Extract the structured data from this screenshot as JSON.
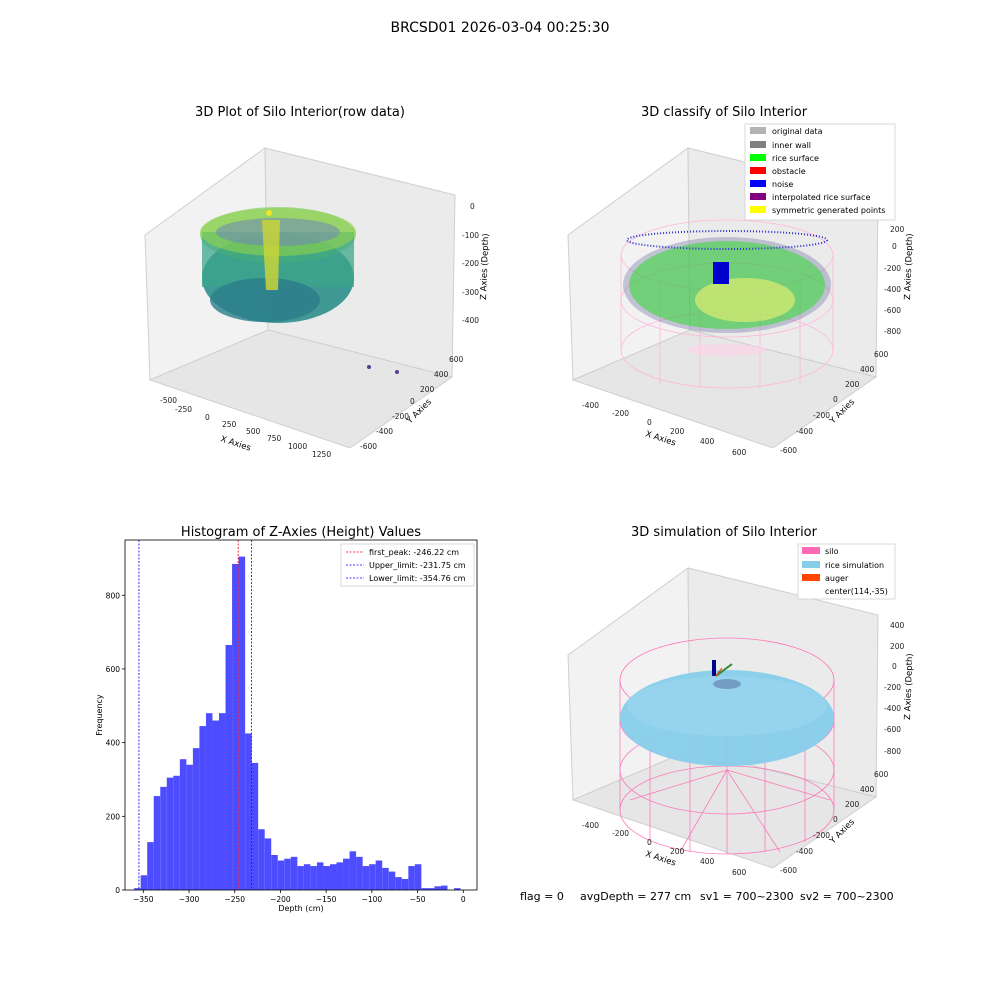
{
  "suptitle": "BRCSD01 2026-03-04 00:25:30",
  "footer": {
    "flag": "flag = 0",
    "avg": "avgDepth = 277 cm",
    "sv1": "sv1 = 700~2300",
    "sv2": "sv2 = 700~2300"
  },
  "panels": {
    "raw": {
      "title": "3D Plot of Silo Interior(row data)",
      "xlabel": "X Axies",
      "ylabel": "Y Axies",
      "zlabel": "Z Axies (Depth)",
      "xticks": [
        "-500",
        "-250",
        "0",
        "250",
        "500",
        "750",
        "1000",
        "1250"
      ],
      "yticks": [
        "600",
        "400",
        "200",
        "0",
        "-200",
        "-400",
        "-600"
      ],
      "zticks": [
        "0",
        "-100",
        "-200",
        "-300",
        "-400"
      ]
    },
    "classify": {
      "title": "3D classify of Silo Interior",
      "xlabel": "X Axies",
      "ylabel": "Y Axies",
      "zlabel": "Z Axies (Depth)",
      "xticks": [
        "-400",
        "-200",
        "0",
        "200",
        "400",
        "600"
      ],
      "yticks": [
        "600",
        "400",
        "200",
        "0",
        "-200",
        "-400",
        "-600"
      ],
      "zticks": [
        "200",
        "0",
        "-200",
        "-400",
        "-600",
        "-800"
      ],
      "legend": [
        {
          "label": "original data",
          "color": "#b3b3b3"
        },
        {
          "label": "inner wall",
          "color": "#808080"
        },
        {
          "label": "rice surface",
          "color": "#00ff00"
        },
        {
          "label": "obstacle",
          "color": "#ff0000"
        },
        {
          "label": "noise",
          "color": "#0000ff"
        },
        {
          "label": "interpolated rice surface",
          "color": "#800080"
        },
        {
          "label": "symmetric generated points",
          "color": "#ffff00"
        }
      ]
    },
    "simulation": {
      "title": "3D simulation of Silo Interior",
      "xlabel": "X Axies",
      "ylabel": "Y Axies",
      "zlabel": "Z Axies (Depth)",
      "xticks": [
        "-400",
        "-200",
        "0",
        "200",
        "400",
        "600"
      ],
      "yticks": [
        "600",
        "400",
        "200",
        "0",
        "-200",
        "-400",
        "-600"
      ],
      "zticks": [
        "400",
        "200",
        "0",
        "-200",
        "-400",
        "-600",
        "-800"
      ],
      "legend": [
        {
          "label": "silo",
          "color": "#ff69b4"
        },
        {
          "label": "rice simulation",
          "color": "#87ceeb"
        },
        {
          "label": "auger",
          "color": "#ff4500"
        },
        {
          "label": "center(114,-35)",
          "color": ""
        }
      ]
    }
  },
  "chart_data": {
    "type": "bar",
    "title": "Histogram of Z-Axies (Height) Values",
    "xlabel": "Depth (cm)",
    "ylabel": "Frequency",
    "bar_color": "#4d4dff",
    "xlim": [
      -370,
      15
    ],
    "ylim": [
      0,
      950
    ],
    "xticks": [
      -350,
      -300,
      -250,
      -200,
      -150,
      -100,
      -50,
      0
    ],
    "yticks": [
      0,
      200,
      400,
      600,
      800
    ],
    "bin_start": -360,
    "bin_width": 7.14,
    "values": [
      5,
      40,
      130,
      255,
      280,
      305,
      310,
      355,
      340,
      385,
      445,
      480,
      460,
      480,
      665,
      885,
      905,
      425,
      345,
      165,
      140,
      95,
      80,
      85,
      90,
      65,
      70,
      65,
      75,
      65,
      70,
      75,
      85,
      105,
      90,
      65,
      70,
      80,
      60,
      50,
      35,
      30,
      65,
      70,
      5,
      5,
      10,
      12,
      0,
      5
    ],
    "lines": [
      {
        "label": "first_peak: -246.22 cm",
        "x": -246.22,
        "color": "#ff0000"
      },
      {
        "label": "Upper_limit: -231.75 cm",
        "x": -231.75,
        "color": "#0000ff"
      },
      {
        "label": "Lower_limit: -354.76 cm",
        "x": -354.76,
        "color": "#0000ff"
      }
    ]
  }
}
